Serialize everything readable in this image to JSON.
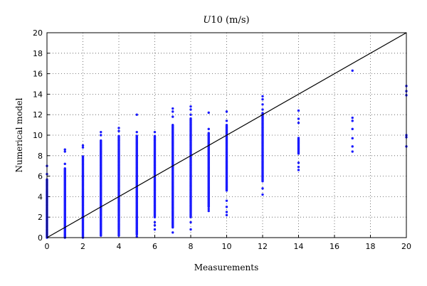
{
  "chart_data": {
    "type": "scatter",
    "title_prefix": "U",
    "title_suffix": "10 (m/s)",
    "xlabel": "Measurements",
    "ylabel": "Numerical model",
    "xlim": [
      0,
      20
    ],
    "ylim": [
      0,
      20
    ],
    "xticks": [
      "0",
      "2",
      "4",
      "6",
      "8",
      "10",
      "12",
      "14",
      "16",
      "18",
      "20"
    ],
    "yticks": [
      "0",
      "2",
      "4",
      "6",
      "8",
      "10",
      "12",
      "14",
      "16",
      "18",
      "20"
    ],
    "grid": true,
    "reference_line": [
      [
        0,
        0
      ],
      [
        20,
        20
      ]
    ],
    "colors": {
      "points": "#1a1aff",
      "line": "#000000"
    },
    "columns": [
      {
        "x": 0,
        "ymin": 0.0,
        "ymax": 5.7,
        "extra": [
          6.2,
          7.0
        ]
      },
      {
        "x": 1,
        "ymin": 0.0,
        "ymax": 6.8,
        "extra": [
          7.2,
          8.4,
          8.6
        ]
      },
      {
        "x": 2,
        "ymin": 0.0,
        "ymax": 8.0,
        "extra": [
          8.8,
          9.0
        ]
      },
      {
        "x": 3,
        "ymin": 0.2,
        "ymax": 9.5,
        "extra": [
          10.0,
          10.3
        ]
      },
      {
        "x": 4,
        "ymin": 0.2,
        "ymax": 10.0,
        "extra": [
          10.4,
          10.7
        ]
      },
      {
        "x": 5,
        "ymin": 0.3,
        "ymax": 10.0,
        "extra": [
          0.1,
          0.6,
          10.3,
          12.0
        ]
      },
      {
        "x": 6,
        "ymin": 2.0,
        "ymax": 10.0,
        "extra": [
          0.8,
          1.2,
          1.5,
          10.3
        ]
      },
      {
        "x": 7,
        "ymin": 1.0,
        "ymax": 11.0,
        "extra": [
          0.5,
          11.8,
          12.3,
          12.6
        ]
      },
      {
        "x": 8,
        "ymin": 2.0,
        "ymax": 11.7,
        "extra": [
          0.8,
          1.5,
          12.0,
          12.5,
          12.8
        ]
      },
      {
        "x": 9,
        "ymin": 3.0,
        "ymax": 10.2,
        "extra": [
          2.6,
          2.8,
          10.6,
          12.2
        ]
      },
      {
        "x": 10,
        "ymin": 4.6,
        "ymax": 11.0,
        "extra": [
          2.2,
          2.5,
          3.0,
          3.6,
          11.4,
          12.3
        ]
      },
      {
        "x": 12,
        "ymin": 5.5,
        "ymax": 12.2,
        "extra": [
          4.2,
          4.8,
          12.5,
          13.0,
          13.5,
          13.8
        ]
      },
      {
        "x": 14,
        "ymin": 8.2,
        "ymax": 9.8,
        "extra": [
          6.6,
          6.9,
          7.3,
          11.2,
          11.6,
          12.4
        ]
      },
      {
        "x": 17,
        "ymin": 8.4,
        "ymax": 8.4,
        "extra": [
          8.9,
          9.7,
          10.6,
          11.4,
          11.7,
          16.3
        ]
      },
      {
        "x": 20,
        "ymin": 8.9,
        "ymax": 8.9,
        "extra": [
          9.8,
          10.0,
          13.9,
          14.3,
          14.8
        ]
      }
    ]
  }
}
